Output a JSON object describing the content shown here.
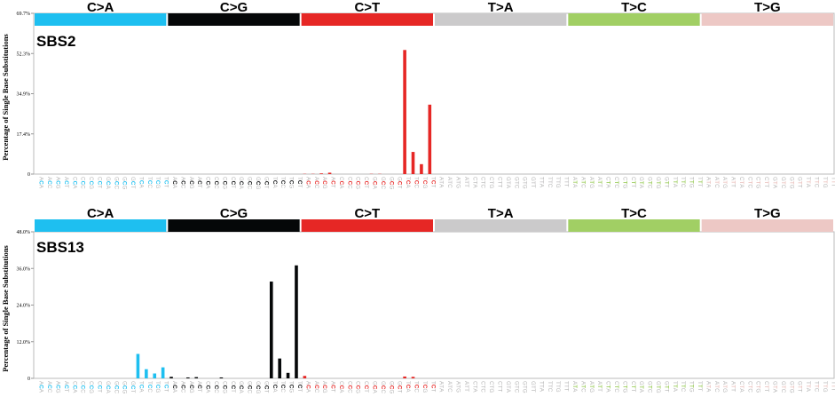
{
  "mutation_types": [
    "C>A",
    "C>G",
    "C>T",
    "T>A",
    "T>C",
    "T>G"
  ],
  "colors": {
    "C>A": "#1ebff0",
    "C>G": "#050708",
    "C>T": "#e62725",
    "T>A": "#cbcacb",
    "T>C": "#a1cf64",
    "T>G": "#edc8c5"
  },
  "chart_data": [
    {
      "type": "bar",
      "title": "SBS2",
      "ylabel": "Percentage of Single Base Substitutions",
      "yticks": [
        "0",
        "17.4%",
        "34.9%",
        "52.3%",
        "69.7%"
      ],
      "ylim": [
        0,
        69.7
      ],
      "categories": [
        "ACA",
        "ACC",
        "ACG",
        "ACT",
        "CCA",
        "CCC",
        "CCG",
        "CCT",
        "GCA",
        "GCC",
        "GCG",
        "GCT",
        "TCA",
        "TCC",
        "TCG",
        "TCT",
        "ACA",
        "ACC",
        "ACG",
        "ACT",
        "CCA",
        "CCC",
        "CCG",
        "CCT",
        "GCA",
        "GCC",
        "GCG",
        "GCT",
        "TCA",
        "TCC",
        "TCG",
        "TCT",
        "ACA",
        "ACC",
        "ACG",
        "ACT",
        "CCA",
        "CCC",
        "CCG",
        "CCT",
        "GCA",
        "GCC",
        "GCG",
        "GCT",
        "TCA",
        "TCC",
        "TCG",
        "TCT",
        "ATA",
        "ATC",
        "ATG",
        "ATT",
        "CTA",
        "CTC",
        "CTG",
        "CTT",
        "GTA",
        "GTC",
        "GTG",
        "GTT",
        "TTA",
        "TTC",
        "TTG",
        "TTT",
        "ATA",
        "ATC",
        "ATG",
        "ATT",
        "CTA",
        "CTC",
        "CTG",
        "CTT",
        "GTA",
        "GTC",
        "GTG",
        "GTT",
        "TTA",
        "TTC",
        "TTG",
        "TTT",
        "ATA",
        "ATC",
        "ATG",
        "ATT",
        "CTA",
        "CTC",
        "CTG",
        "CTT",
        "GTA",
        "GTC",
        "GTG",
        "GTT",
        "TTA",
        "TTC",
        "TTG",
        "TTT"
      ],
      "values": [
        0,
        0,
        0,
        0,
        0,
        0,
        0,
        0,
        0,
        0,
        0,
        0,
        0,
        0,
        0,
        0,
        0,
        0,
        0,
        0,
        0,
        0,
        0,
        0,
        0,
        0,
        0,
        0,
        0,
        0,
        0,
        0,
        0.1,
        0.1,
        0.3,
        0.6,
        0,
        0,
        0,
        0,
        0.1,
        0.1,
        0,
        0,
        53.8,
        9.6,
        4.3,
        30.1,
        0,
        0,
        0,
        0,
        0,
        0,
        0,
        0,
        0,
        0,
        0,
        0,
        0,
        0,
        0,
        0,
        0,
        0,
        0,
        0,
        0,
        0,
        0,
        0,
        0,
        0,
        0,
        0,
        0,
        0,
        0,
        0,
        0,
        0,
        0,
        0,
        0,
        0,
        0,
        0,
        0,
        0,
        0,
        0,
        0,
        0,
        0,
        0
      ]
    },
    {
      "type": "bar",
      "title": "SBS13",
      "ylabel": "Percentage of Single Base Substitutions",
      "yticks": [
        "0",
        "12.0%",
        "24.0%",
        "36.0%",
        "48.0%"
      ],
      "ylim": [
        0,
        48.0
      ],
      "categories": [
        "ACA",
        "ACC",
        "ACG",
        "ACT",
        "CCA",
        "CCC",
        "CCG",
        "CCT",
        "GCA",
        "GCC",
        "GCG",
        "GCT",
        "TCA",
        "TCC",
        "TCG",
        "TCT",
        "ACA",
        "ACC",
        "ACG",
        "ACT",
        "CCA",
        "CCC",
        "CCG",
        "CCT",
        "GCA",
        "GCC",
        "GCG",
        "GCT",
        "TCA",
        "TCC",
        "TCG",
        "TCT",
        "ACA",
        "ACC",
        "ACG",
        "ACT",
        "CCA",
        "CCC",
        "CCG",
        "CCT",
        "GCA",
        "GCC",
        "GCG",
        "GCT",
        "TCA",
        "TCC",
        "TCG",
        "TCT",
        "ATA",
        "ATC",
        "ATG",
        "ATT",
        "CTA",
        "CTC",
        "CTG",
        "CTT",
        "GTA",
        "GTC",
        "GTG",
        "GTT",
        "TTA",
        "TTC",
        "TTG",
        "TTT",
        "ATA",
        "ATC",
        "ATG",
        "ATT",
        "CTA",
        "CTC",
        "CTG",
        "CTT",
        "GTA",
        "GTC",
        "GTG",
        "GTT",
        "TTA",
        "TTC",
        "TTG",
        "TTT",
        "ATA",
        "ATC",
        "ATG",
        "ATT",
        "CTA",
        "CTC",
        "CTG",
        "CTT",
        "GTA",
        "GTC",
        "GTG",
        "GTT",
        "TTA",
        "TTC",
        "TTG",
        "TTT"
      ],
      "values": [
        0,
        0,
        0,
        0,
        0,
        0,
        0,
        0,
        0,
        0,
        0,
        0,
        8.0,
        3.0,
        1.6,
        3.6,
        0.5,
        0,
        0.3,
        0.4,
        0,
        0,
        0.3,
        0,
        0,
        0,
        0,
        0,
        31.7,
        6.5,
        1.8,
        37.0,
        0.8,
        0,
        0,
        0,
        0,
        0,
        0,
        0,
        0,
        0,
        0,
        0,
        0.6,
        0.5,
        0,
        0,
        0,
        0,
        0,
        0,
        0,
        0,
        0,
        0,
        0,
        0,
        0,
        0,
        0,
        0,
        0,
        0,
        0,
        0,
        0,
        0,
        0,
        0,
        0,
        0,
        0,
        0,
        0,
        0,
        0,
        0,
        0,
        0,
        0,
        0,
        0,
        0,
        0,
        0,
        0,
        0,
        0,
        0,
        0,
        0,
        0,
        0,
        0,
        0
      ]
    }
  ]
}
